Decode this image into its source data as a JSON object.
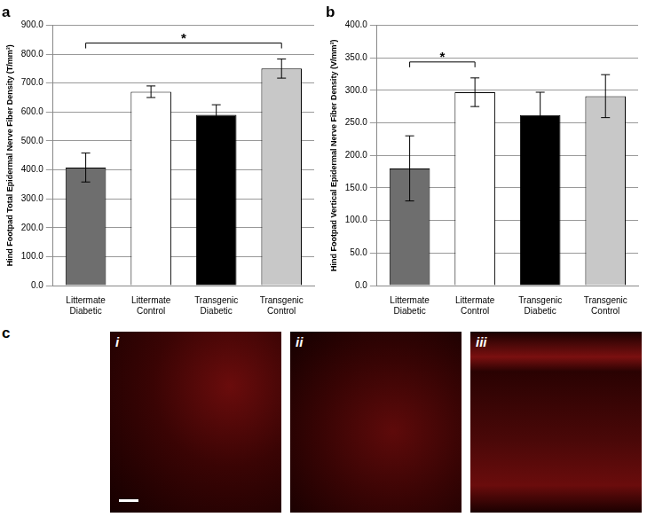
{
  "chart_data": [
    {
      "type": "bar",
      "title": "a",
      "y_label": "Hind Footpad Total Epidermal Nerve Fiber Density (T/mm³)",
      "categories": [
        "Littermate Diabetic",
        "Littermate Control",
        "Transgenic Diabetic",
        "Transgenic Control"
      ],
      "values": [
        408,
        670,
        590,
        750
      ],
      "errors": [
        50,
        20,
        35,
        33
      ],
      "colors": [
        "#6e6e6e",
        "#ffffff",
        "#000000",
        "#c8c8c8"
      ],
      "ylim": [
        0,
        900
      ],
      "yticks": [
        {
          "value": 0,
          "label": "0.0"
        },
        {
          "value": 100,
          "label": "100.0"
        },
        {
          "value": 200,
          "label": "200.0"
        },
        {
          "value": 300,
          "label": "300.0"
        },
        {
          "value": 400,
          "label": "400.0"
        },
        {
          "value": 500,
          "label": "500.0"
        },
        {
          "value": 600,
          "label": "600.0"
        },
        {
          "value": 700,
          "label": "700.0"
        },
        {
          "value": 800,
          "label": "800.0"
        },
        {
          "value": 900,
          "label": "900.0"
        }
      ],
      "grid": true,
      "annotations": [
        {
          "text": "*",
          "from": "Littermate Diabetic",
          "to": "Transgenic Control"
        }
      ]
    },
    {
      "type": "bar",
      "title": "b",
      "y_label": "Hind Footpad Vertical Epidermal Nerve Fiber Density (V/mm³)",
      "categories": [
        "Littermate Diabetic",
        "Littermate Control",
        "Transgenic Diabetic",
        "Transgenic Control"
      ],
      "values": [
        180,
        297,
        262,
        291
      ],
      "errors": [
        50,
        22,
        35,
        33
      ],
      "colors": [
        "#6e6e6e",
        "#ffffff",
        "#000000",
        "#c8c8c8"
      ],
      "ylim": [
        0,
        400
      ],
      "yticks": [
        {
          "value": 0,
          "label": "0.0"
        },
        {
          "value": 50,
          "label": "50.0"
        },
        {
          "value": 100,
          "label": "100.0"
        },
        {
          "value": 150,
          "label": "150.0"
        },
        {
          "value": 200,
          "label": "200.0"
        },
        {
          "value": 250,
          "label": "250.0"
        },
        {
          "value": 300,
          "label": "300.0"
        },
        {
          "value": 350,
          "label": "350.0"
        },
        {
          "value": 400,
          "label": "400.0"
        }
      ],
      "grid": true,
      "annotations": [
        {
          "text": "*",
          "from": "Littermate Diabetic",
          "to": "Littermate Control"
        }
      ]
    }
  ],
  "panel_c": {
    "label": "c",
    "images": [
      "i",
      "ii",
      "iii"
    ]
  }
}
